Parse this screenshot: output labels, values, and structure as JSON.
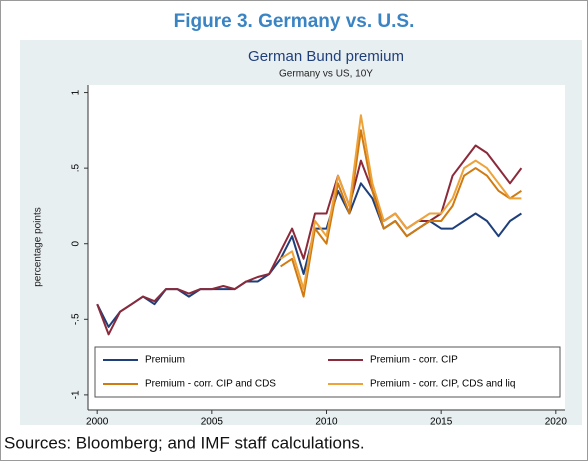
{
  "figure": {
    "title": "Figure 3. Germany vs. U.S.",
    "source": "Sources: Bloomberg; and IMF staff calculations."
  },
  "chart_data": {
    "type": "line",
    "title": "German Bund premium",
    "subtitle": "Germany vs US, 10Y",
    "y_label": "percentage points",
    "x": [
      2000,
      2000.5,
      2001,
      2001.5,
      2002,
      2002.5,
      2003,
      2003.5,
      2004,
      2004.5,
      2005,
      2005.5,
      2006,
      2006.5,
      2007,
      2007.5,
      2008,
      2008.5,
      2009,
      2009.5,
      2010,
      2010.5,
      2011,
      2011.5,
      2012,
      2012.5,
      2013,
      2013.5,
      2014,
      2014.5,
      2015,
      2015.5,
      2016,
      2016.5,
      2017,
      2017.5,
      2018,
      2018.5
    ],
    "series": [
      {
        "name": "Premium",
        "color": "#1f3f7a",
        "values": [
          -0.4,
          -0.55,
          -0.45,
          -0.4,
          -0.35,
          -0.4,
          -0.3,
          -0.3,
          -0.35,
          -0.3,
          -0.3,
          -0.3,
          -0.3,
          -0.25,
          -0.25,
          -0.2,
          -0.1,
          0.05,
          -0.2,
          0.1,
          0.1,
          0.35,
          0.2,
          0.4,
          0.3,
          0.1,
          0.15,
          0.05,
          0.1,
          0.15,
          0.1,
          0.1,
          0.15,
          0.2,
          0.15,
          0.05,
          0.15,
          0.2
        ]
      },
      {
        "name": "Premium - corr. CIP",
        "color": "#8b2a3a",
        "values": [
          -0.4,
          -0.6,
          -0.45,
          -0.4,
          -0.35,
          -0.38,
          -0.3,
          -0.3,
          -0.33,
          -0.3,
          -0.3,
          -0.28,
          -0.3,
          -0.25,
          -0.22,
          -0.2,
          -0.05,
          0.1,
          -0.1,
          0.2,
          0.2,
          0.45,
          0.25,
          0.55,
          0.35,
          0.15,
          0.2,
          0.1,
          0.15,
          0.15,
          0.2,
          0.45,
          0.55,
          0.65,
          0.6,
          0.5,
          0.4,
          0.5
        ]
      },
      {
        "name": "Premium - corr. CIP and CDS",
        "color": "#d07a10",
        "values": [
          null,
          null,
          null,
          null,
          null,
          null,
          null,
          null,
          null,
          null,
          null,
          null,
          null,
          null,
          null,
          null,
          -0.15,
          -0.1,
          -0.35,
          0.1,
          0.0,
          0.4,
          0.2,
          0.75,
          0.35,
          0.1,
          0.15,
          0.05,
          0.1,
          0.15,
          0.15,
          0.25,
          0.45,
          0.5,
          0.45,
          0.35,
          0.3,
          0.35
        ]
      },
      {
        "name": "Premium - corr. CIP, CDS and liq",
        "color": "#eda23a",
        "values": [
          null,
          null,
          null,
          null,
          null,
          null,
          null,
          null,
          null,
          null,
          null,
          null,
          null,
          null,
          null,
          null,
          -0.1,
          -0.05,
          -0.3,
          0.15,
          0.05,
          0.45,
          0.25,
          0.85,
          0.4,
          0.15,
          0.2,
          0.1,
          0.15,
          0.2,
          0.2,
          0.3,
          0.5,
          0.55,
          0.5,
          0.4,
          0.3,
          0.3
        ]
      }
    ],
    "xlim": [
      1999.6,
      2020.4
    ],
    "xticks": [
      2000,
      2005,
      2010,
      2015,
      2020
    ],
    "ylim": [
      -1.1,
      1.05
    ],
    "yticks": [
      -1,
      {
        "value": -0.5,
        "label": "-.5"
      },
      0,
      {
        "value": 0.5,
        "label": ".5"
      },
      1
    ],
    "grid": false,
    "legend": "bottom"
  }
}
